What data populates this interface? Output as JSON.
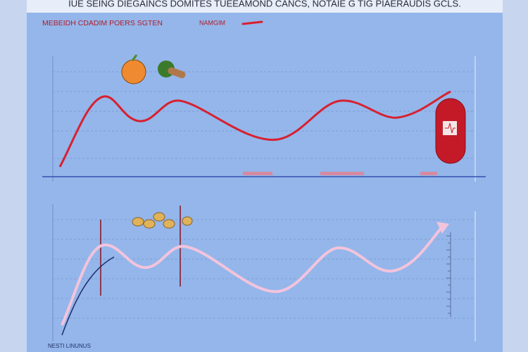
{
  "header": {
    "title": "IUE SEING DIEGAINCS DOMITES TUEEAMOND CANCS, NOTAIE G TIG PIAERAUDIS GCLS."
  },
  "legend": {
    "items": [
      "MEBEIDH CDADIM POERS SGTEN",
      "NAMGIM"
    ]
  },
  "footer": {
    "label": "NESTI LINUNUS"
  }
}
